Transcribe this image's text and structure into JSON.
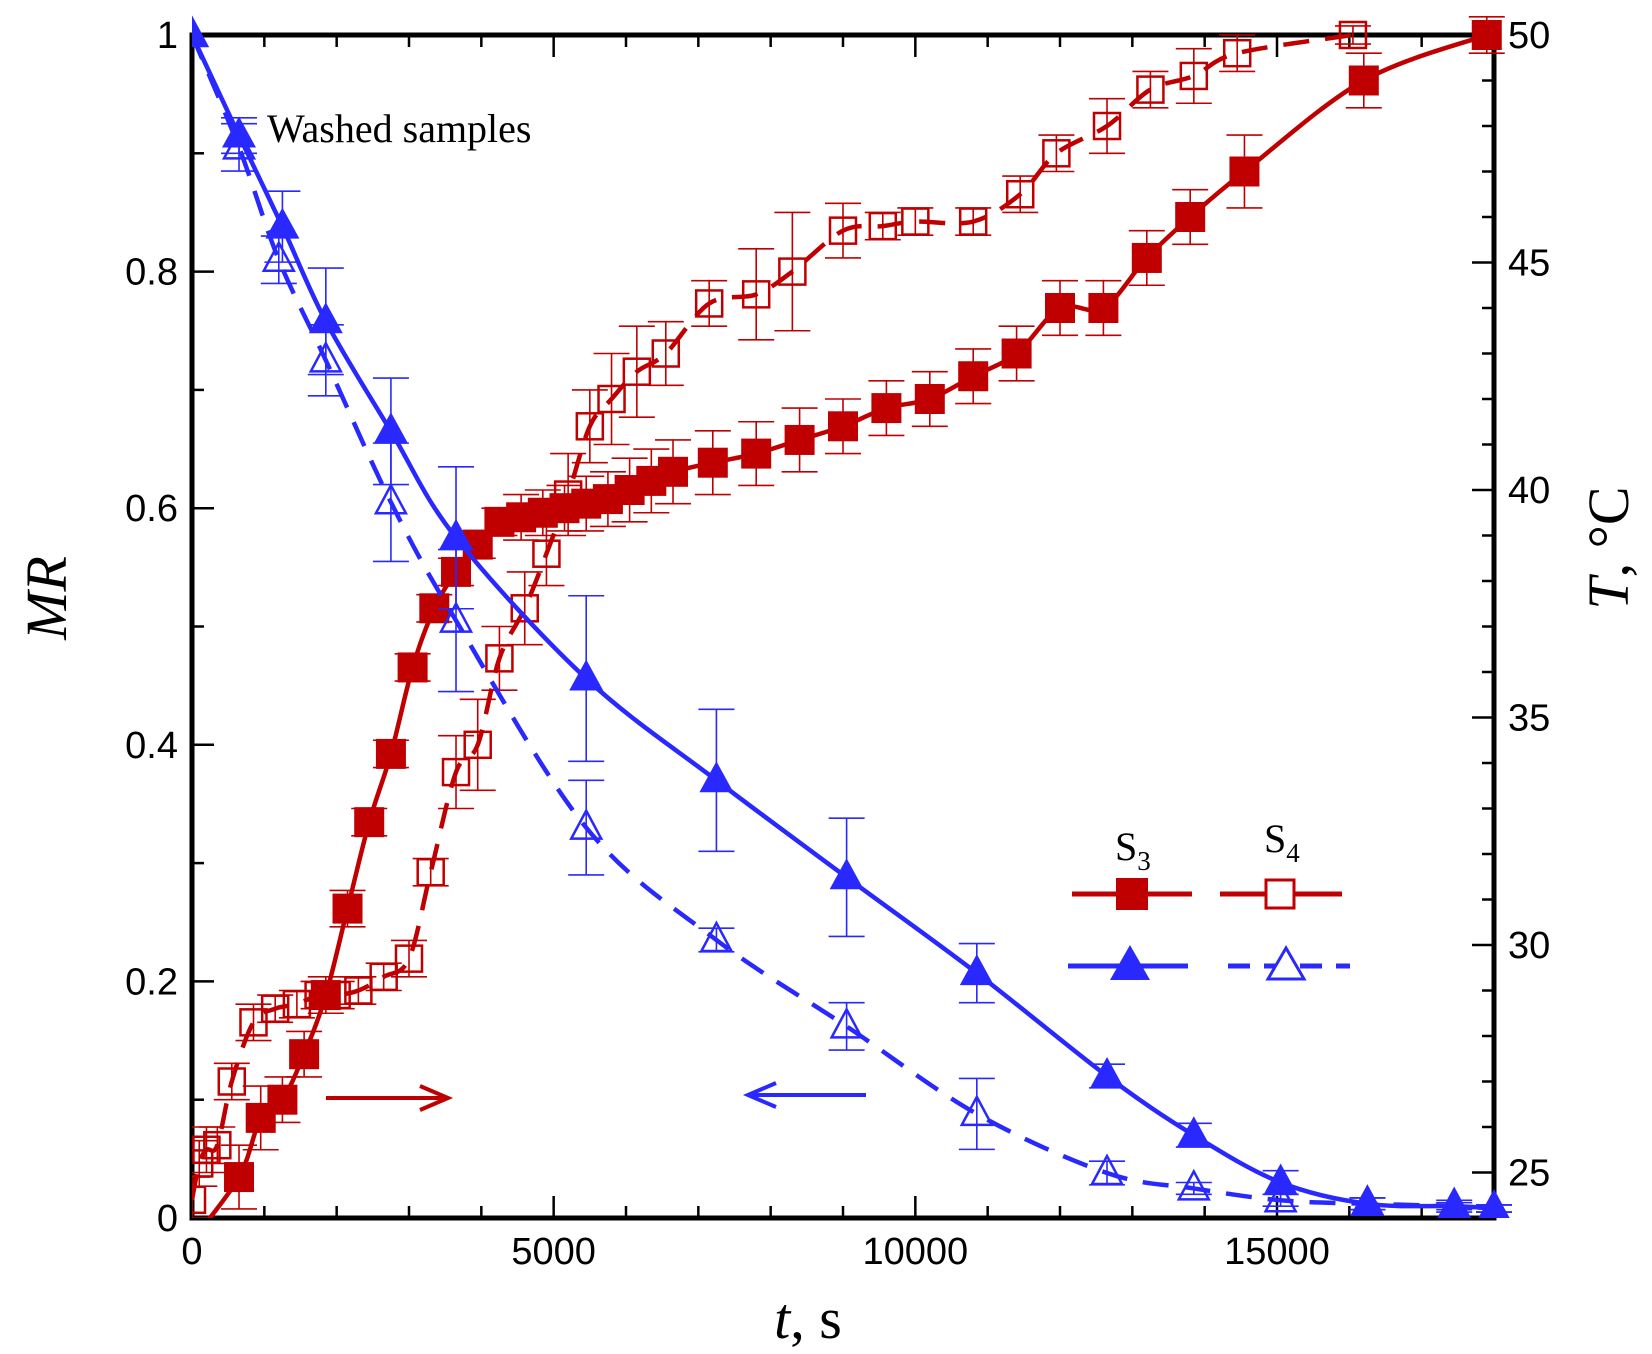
{
  "chart_data": {
    "type": "line",
    "annotation": "Washed samples",
    "x_axis": {
      "label_italic": "t",
      "label_rest": ", s",
      "range": [
        0,
        18000
      ],
      "ticks": [
        0,
        5000,
        10000,
        15000
      ],
      "tick_labels": [
        "0",
        "5000",
        "10000",
        "15000"
      ]
    },
    "y_axis_left": {
      "label": "MR",
      "range": [
        0,
        1
      ],
      "ticks": [
        0,
        0.2,
        0.4,
        0.6,
        0.8,
        1
      ],
      "tick_labels": [
        "0",
        "0.2",
        "0.4",
        "0.6",
        "0.8",
        "1"
      ]
    },
    "y_axis_right": {
      "label_italic": "T",
      "label_rest": ", °C",
      "range": [
        24,
        50
      ],
      "ticks": [
        25,
        30,
        35,
        40,
        45,
        50
      ],
      "tick_labels": [
        "25",
        "30",
        "35",
        "40",
        "45",
        "50"
      ]
    },
    "legend": {
      "position": "right-center",
      "col1_base": "S",
      "col1_sub": "3",
      "col2_base": "S",
      "col2_sub": "4"
    },
    "colors": {
      "temperature": "#c00000",
      "moisture": "#2828ff"
    },
    "series": [
      {
        "id": "s3_T",
        "axis": "right",
        "marker": "square-filled",
        "dash": "solid",
        "points": [
          [
            0,
            23.5
          ],
          [
            650,
            24.9
          ],
          [
            950,
            26.2
          ],
          [
            1250,
            26.6
          ],
          [
            1550,
            27.6
          ],
          [
            1850,
            28.9
          ],
          [
            2150,
            30.8
          ],
          [
            2450,
            32.7
          ],
          [
            2750,
            34.2
          ],
          [
            3050,
            36.1
          ],
          [
            3350,
            37.4
          ],
          [
            3650,
            38.2
          ],
          [
            3950,
            38.8
          ],
          [
            4250,
            39.3
          ],
          [
            4550,
            39.4
          ],
          [
            4850,
            39.5
          ],
          [
            5150,
            39.6
          ],
          [
            5450,
            39.7
          ],
          [
            5750,
            39.8
          ],
          [
            6050,
            40.0
          ],
          [
            6350,
            40.2
          ],
          [
            6650,
            40.4
          ],
          [
            7200,
            40.6
          ],
          [
            7800,
            40.8
          ],
          [
            8400,
            41.1
          ],
          [
            9000,
            41.4
          ],
          [
            9600,
            41.8
          ],
          [
            10200,
            42.0
          ],
          [
            10800,
            42.5
          ],
          [
            11400,
            43.0
          ],
          [
            12000,
            44.0
          ],
          [
            12600,
            44.0
          ],
          [
            13200,
            45.1
          ],
          [
            13800,
            46.0
          ],
          [
            14550,
            47.0
          ],
          [
            16200,
            49.0
          ],
          [
            17900,
            50.0
          ]
        ],
        "errors": [
          0.5,
          0.7,
          0.7,
          0.5,
          0.5,
          0.4,
          0.4,
          0.3,
          0.3,
          0.3,
          0.3,
          0.3,
          0.3,
          0.3,
          0.5,
          0.5,
          0.5,
          0.6,
          0.6,
          0.7,
          0.7,
          0.7,
          0.7,
          0.7,
          0.7,
          0.6,
          0.6,
          0.6,
          0.6,
          0.6,
          0.6,
          0.6,
          0.6,
          0.6,
          0.8,
          0.6,
          0.4
        ]
      },
      {
        "id": "s4_T",
        "axis": "right",
        "marker": "square-open",
        "dash": "dashed",
        "points": [
          [
            0,
            24.4
          ],
          [
            100,
            25.2
          ],
          [
            200,
            25.5
          ],
          [
            350,
            25.6
          ],
          [
            550,
            27.0
          ],
          [
            850,
            28.3
          ],
          [
            1150,
            28.6
          ],
          [
            1450,
            28.7
          ],
          [
            1750,
            28.9
          ],
          [
            2000,
            28.9
          ],
          [
            2300,
            29.0
          ],
          [
            2650,
            29.3
          ],
          [
            3000,
            29.7
          ],
          [
            3300,
            31.6
          ],
          [
            3650,
            33.8
          ],
          [
            3950,
            34.4
          ],
          [
            4250,
            36.3
          ],
          [
            4600,
            37.4
          ],
          [
            4900,
            38.6
          ],
          [
            5200,
            39.9
          ],
          [
            5500,
            41.4
          ],
          [
            5800,
            42.0
          ],
          [
            6150,
            42.6
          ],
          [
            6550,
            43.0
          ],
          [
            7150,
            44.1
          ],
          [
            7800,
            44.3
          ],
          [
            8300,
            44.8
          ],
          [
            9000,
            45.7
          ],
          [
            9550,
            45.8
          ],
          [
            10000,
            45.9
          ],
          [
            10800,
            45.9
          ],
          [
            11450,
            46.5
          ],
          [
            11950,
            47.4
          ],
          [
            12650,
            48.0
          ],
          [
            13250,
            48.8
          ],
          [
            13850,
            49.1
          ],
          [
            14450,
            49.6
          ],
          [
            16050,
            50.0
          ]
        ],
        "errors": [
          0.5,
          0.5,
          0.5,
          0.4,
          0.4,
          0.4,
          0.3,
          0.3,
          0.3,
          0.3,
          0.3,
          0.3,
          0.4,
          0.3,
          0.8,
          1.0,
          0.7,
          0.8,
          0.7,
          0.9,
          0.8,
          1.0,
          1.0,
          0.7,
          0.5,
          1.0,
          1.3,
          0.6,
          0.3,
          0.3,
          0.3,
          0.4,
          0.4,
          0.6,
          0.4,
          0.6,
          0.4,
          0.2
        ]
      },
      {
        "id": "s3_MR",
        "axis": "left",
        "marker": "triangle-filled",
        "dash": "solid",
        "points": [
          [
            0,
            1.0
          ],
          [
            650,
            0.915
          ],
          [
            1250,
            0.838
          ],
          [
            1850,
            0.758
          ],
          [
            2750,
            0.665
          ],
          [
            3650,
            0.575
          ],
          [
            5450,
            0.456
          ],
          [
            7250,
            0.37
          ],
          [
            9050,
            0.288
          ],
          [
            10850,
            0.207
          ],
          [
            12650,
            0.12
          ],
          [
            13850,
            0.07
          ],
          [
            15050,
            0.03
          ],
          [
            16250,
            0.012
          ],
          [
            17450,
            0.01
          ],
          [
            18000,
            0.008
          ]
        ],
        "errors": [
          0,
          0.015,
          0.03,
          0.045,
          0.045,
          0.06,
          0.07,
          0.06,
          0.05,
          0.025,
          0.01,
          0.01,
          0.01,
          0.005,
          0.005,
          0.003
        ]
      },
      {
        "id": "s4_MR",
        "axis": "left",
        "marker": "triangle-open",
        "dash": "dashed",
        "points": [
          [
            0,
            1.0
          ],
          [
            650,
            0.905
          ],
          [
            1200,
            0.81
          ],
          [
            1850,
            0.725
          ],
          [
            2750,
            0.605
          ],
          [
            3650,
            0.505
          ],
          [
            5450,
            0.33
          ],
          [
            7250,
            0.235
          ],
          [
            9050,
            0.162
          ],
          [
            10850,
            0.088
          ],
          [
            12650,
            0.038
          ],
          [
            13850,
            0.025
          ],
          [
            15050,
            0.015
          ],
          [
            16250,
            0.012
          ],
          [
            17450,
            0.01
          ],
          [
            18000,
            0.008
          ]
        ],
        "errors": [
          0,
          0.02,
          0.02,
          0.03,
          0.05,
          0.06,
          0.04,
          0.01,
          0.02,
          0.03,
          0.01,
          0.005,
          0.005,
          0.005,
          0.003,
          0.003
        ]
      }
    ]
  }
}
